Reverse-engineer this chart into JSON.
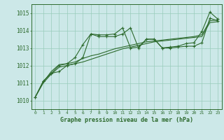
{
  "xlabel": "Graphe pression niveau de la mer (hPa)",
  "background_color": "#cce8e8",
  "grid_color": "#99ccbb",
  "line_color": "#2d6a2d",
  "ylim": [
    1009.5,
    1015.5
  ],
  "xlim": [
    -0.5,
    23.5
  ],
  "yticks": [
    1010,
    1011,
    1012,
    1013,
    1014,
    1015
  ],
  "xticks": [
    0,
    1,
    2,
    3,
    4,
    5,
    6,
    7,
    8,
    9,
    10,
    11,
    12,
    13,
    14,
    15,
    16,
    17,
    18,
    19,
    20,
    21,
    22,
    23
  ],
  "series1": [
    1010.2,
    1011.1,
    1011.55,
    1012.0,
    1012.1,
    1012.45,
    1013.2,
    1013.8,
    1013.75,
    1013.75,
    1013.8,
    1014.15,
    1013.0,
    1013.05,
    1013.5,
    1013.5,
    1013.0,
    1013.05,
    1013.1,
    1013.25,
    1013.3,
    1013.95,
    1015.05,
    1014.65
  ],
  "series2": [
    1010.2,
    1011.1,
    1011.55,
    1011.65,
    1012.0,
    1012.1,
    1012.45,
    1013.8,
    1013.65,
    1013.65,
    1013.65,
    1013.8,
    1014.15,
    1013.0,
    1013.5,
    1013.5,
    1013.0,
    1013.0,
    1013.05,
    1013.1,
    1013.1,
    1013.3,
    1014.7,
    1014.55
  ],
  "series3": [
    1010.2,
    1011.0,
    1011.5,
    1011.9,
    1012.0,
    1012.1,
    1012.2,
    1012.35,
    1012.5,
    1012.65,
    1012.8,
    1012.95,
    1013.05,
    1013.15,
    1013.25,
    1013.35,
    1013.4,
    1013.45,
    1013.5,
    1013.55,
    1013.6,
    1013.65,
    1014.45,
    1014.5
  ],
  "series4": [
    1010.2,
    1011.05,
    1011.65,
    1012.05,
    1012.1,
    1012.2,
    1012.4,
    1012.55,
    1012.65,
    1012.8,
    1012.95,
    1013.05,
    1013.15,
    1013.25,
    1013.35,
    1013.4,
    1013.45,
    1013.5,
    1013.55,
    1013.6,
    1013.65,
    1013.75,
    1014.55,
    1014.6
  ]
}
